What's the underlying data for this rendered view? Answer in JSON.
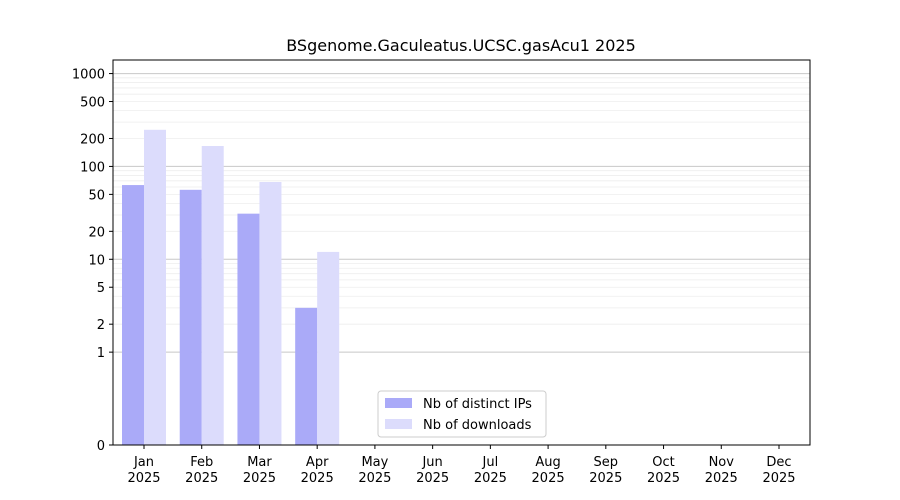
{
  "chart_data": {
    "type": "bar",
    "title": "BSgenome.Gaculeatus.UCSC.gasAcu1 2025",
    "xlabel": "",
    "ylabel": "",
    "y_scale": "symlog",
    "ylim": [
      0,
      1400
    ],
    "y_ticks": [
      0,
      1,
      2,
      5,
      10,
      20,
      50,
      100,
      200,
      500,
      1000
    ],
    "grid": true,
    "legend_position": "bottom-center",
    "categories": [
      {
        "month": "Jan",
        "year": "2025"
      },
      {
        "month": "Feb",
        "year": "2025"
      },
      {
        "month": "Mar",
        "year": "2025"
      },
      {
        "month": "Apr",
        "year": "2025"
      },
      {
        "month": "May",
        "year": "2025"
      },
      {
        "month": "Jun",
        "year": "2025"
      },
      {
        "month": "Jul",
        "year": "2025"
      },
      {
        "month": "Aug",
        "year": "2025"
      },
      {
        "month": "Sep",
        "year": "2025"
      },
      {
        "month": "Oct",
        "year": "2025"
      },
      {
        "month": "Nov",
        "year": "2025"
      },
      {
        "month": "Dec",
        "year": "2025"
      }
    ],
    "series": [
      {
        "name": "Nb of distinct IPs",
        "color": "#aaaaf8",
        "values": [
          63,
          56,
          31,
          3,
          0,
          0,
          0,
          0,
          0,
          0,
          0,
          0
        ]
      },
      {
        "name": "Nb of downloads",
        "color": "#dcdcfc",
        "values": [
          248,
          166,
          68,
          12,
          0,
          0,
          0,
          0,
          0,
          0,
          0,
          0
        ]
      }
    ]
  }
}
